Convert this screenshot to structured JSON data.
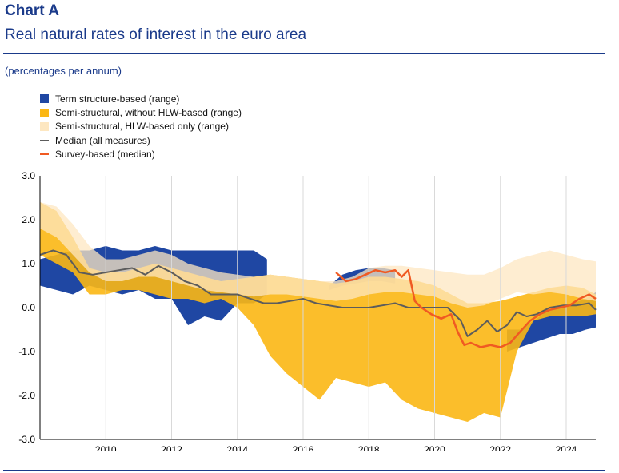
{
  "header": {
    "chart_label": "Chart A",
    "title": "Real natural rates of interest in the euro area",
    "units": "(percentages per annum)"
  },
  "legend": {
    "items": [
      {
        "label": "Term structure-based (range)",
        "kind": "box",
        "color": "#1f47a3"
      },
      {
        "label": "Semi-structural, without HLW-based (range)",
        "kind": "box",
        "color": "#fbb714"
      },
      {
        "label": "Semi-structural, HLW-based only (range)",
        "kind": "box",
        "color": "#fde7c1"
      },
      {
        "label": "Median (all measures)",
        "kind": "line",
        "color": "#5c5c5c"
      },
      {
        "label": "Survey-based (median)",
        "kind": "line",
        "color": "#f05a22"
      }
    ]
  },
  "chart_data": {
    "type": "area",
    "x_range": [
      2008.0,
      2024.9
    ],
    "ylim": [
      -3.0,
      3.0
    ],
    "y_ticks": [
      3.0,
      2.0,
      1.0,
      0.0,
      -1.0,
      -2.0,
      -3.0
    ],
    "y_tick_labels": [
      "3.0",
      "2.0",
      "1.0",
      "0.0",
      "-1.0",
      "-2.0",
      "-3.0"
    ],
    "x_ticks": [
      2010,
      2012,
      2014,
      2016,
      2018,
      2020,
      2022,
      2024
    ],
    "x_tick_labels": [
      "2010",
      "2012",
      "2014",
      "2016",
      "2018",
      "2020",
      "2022",
      "2024"
    ],
    "grid": "vertical",
    "series": [
      {
        "name": "Term structure-based (range)",
        "kind": "range",
        "color": "#1f47a3",
        "x": [
          2008.0,
          2008.5,
          2009.0,
          2009.5,
          2010.0,
          2010.5,
          2011.0,
          2011.5,
          2012.0,
          2012.5,
          2013.0,
          2013.5,
          2014.0,
          2014.5,
          2014.9
        ],
        "upper": [
          1.1,
          1.2,
          1.3,
          1.3,
          1.4,
          1.3,
          1.3,
          1.4,
          1.3,
          1.3,
          1.3,
          1.3,
          1.3,
          1.3,
          1.1
        ],
        "lower": [
          0.5,
          0.4,
          0.3,
          0.5,
          0.4,
          0.3,
          0.4,
          0.2,
          0.2,
          -0.4,
          -0.2,
          -0.3,
          0.1,
          0.1,
          0.3
        ]
      },
      {
        "name": "Term structure-based (range)",
        "kind": "range",
        "color": "#1f47a3",
        "x": [
          2016.8,
          2017.2,
          2017.6,
          2018.0,
          2018.4,
          2018.8
        ],
        "upper": [
          0.5,
          0.75,
          0.85,
          0.9,
          0.9,
          0.85
        ],
        "lower": [
          0.4,
          0.5,
          0.55,
          0.6,
          0.6,
          0.55
        ]
      },
      {
        "name": "Term structure-based (range)",
        "kind": "range",
        "color": "#1f47a3",
        "x": [
          2022.2,
          2022.6,
          2023.0,
          2023.4,
          2023.8,
          2024.2,
          2024.6,
          2024.9
        ],
        "upper": [
          -0.5,
          -0.5,
          -0.3,
          -0.1,
          0.0,
          0.1,
          0.2,
          0.35
        ],
        "lower": [
          -1.0,
          -0.9,
          -0.8,
          -0.7,
          -0.6,
          -0.6,
          -0.5,
          -0.45
        ]
      },
      {
        "name": "Semi-structural, without HLW-based (range)",
        "kind": "range",
        "color": "#fbb714",
        "x": [
          2008.0,
          2008.5,
          2009.0,
          2009.5,
          2010.0,
          2010.5,
          2011.0,
          2011.5,
          2012.0,
          2012.5,
          2013.0,
          2013.5,
          2014.0,
          2014.5,
          2015.0,
          2015.5,
          2016.0,
          2016.5,
          2017.0,
          2017.5,
          2018.0,
          2018.5,
          2019.0,
          2019.5,
          2020.0,
          2020.5,
          2021.0,
          2021.5,
          2022.0,
          2022.5,
          2023.0,
          2023.5,
          2024.0,
          2024.5,
          2024.9
        ],
        "upper": [
          2.4,
          2.2,
          1.6,
          0.9,
          0.8,
          0.8,
          0.9,
          1.0,
          0.9,
          0.8,
          0.7,
          0.6,
          0.65,
          0.7,
          0.75,
          0.7,
          0.65,
          0.6,
          0.55,
          0.6,
          0.7,
          0.7,
          0.65,
          0.6,
          0.5,
          0.3,
          0.1,
          0.1,
          0.15,
          0.25,
          0.35,
          0.45,
          0.5,
          0.45,
          0.3
        ],
        "lower": [
          1.2,
          1.0,
          0.8,
          0.3,
          0.3,
          0.4,
          0.4,
          0.3,
          0.2,
          0.2,
          0.1,
          0.2,
          0.0,
          -0.4,
          -1.1,
          -1.5,
          -1.8,
          -2.1,
          -1.6,
          -1.7,
          -1.8,
          -1.7,
          -2.1,
          -2.3,
          -2.4,
          -2.5,
          -2.6,
          -2.4,
          -2.5,
          -1.0,
          -0.3,
          -0.2,
          -0.2,
          -0.2,
          -0.15
        ]
      },
      {
        "name": "Semi-structural, HLW-based only (range)",
        "kind": "range",
        "color": "#fde7c1",
        "x": [
          2008.0,
          2008.5,
          2009.0,
          2009.5,
          2010.0,
          2010.5,
          2011.0,
          2011.5,
          2012.0,
          2012.5,
          2013.0,
          2013.5,
          2014.0,
          2014.5,
          2015.0,
          2015.5,
          2016.0,
          2016.5,
          2017.0,
          2017.5,
          2018.0,
          2018.5,
          2019.0,
          2019.5,
          2020.0,
          2020.5,
          2021.0,
          2021.5,
          2022.0,
          2022.5,
          2023.0,
          2023.5,
          2024.0,
          2024.5,
          2024.9
        ],
        "upper": [
          2.4,
          2.3,
          1.9,
          1.4,
          1.1,
          1.1,
          1.2,
          1.3,
          1.2,
          1.0,
          0.9,
          0.8,
          0.75,
          0.7,
          0.75,
          0.7,
          0.65,
          0.6,
          0.6,
          0.7,
          0.9,
          0.95,
          0.95,
          0.9,
          0.85,
          0.8,
          0.75,
          0.75,
          0.9,
          1.1,
          1.2,
          1.3,
          1.2,
          1.1,
          1.05
        ],
        "lower": [
          1.8,
          1.6,
          1.2,
          0.8,
          0.6,
          0.6,
          0.7,
          0.7,
          0.6,
          0.5,
          0.4,
          0.35,
          0.3,
          0.25,
          0.3,
          0.3,
          0.25,
          0.2,
          0.15,
          0.2,
          0.3,
          0.35,
          0.35,
          0.3,
          0.25,
          0.1,
          0.0,
          0.05,
          0.2,
          0.35,
          0.3,
          0.35,
          0.3,
          0.2,
          0.15
        ]
      },
      {
        "name": "Median (all measures)",
        "kind": "line",
        "color": "#5c5c5c",
        "x": [
          2008.0,
          2008.4,
          2008.8,
          2009.2,
          2009.6,
          2010.0,
          2010.4,
          2010.8,
          2011.2,
          2011.6,
          2012.0,
          2012.4,
          2012.8,
          2013.2,
          2013.6,
          2014.0,
          2014.4,
          2014.8,
          2015.2,
          2015.6,
          2016.0,
          2016.4,
          2016.8,
          2017.2,
          2017.6,
          2018.0,
          2018.4,
          2018.8,
          2019.2,
          2019.6,
          2020.0,
          2020.4,
          2020.8,
          2021.0,
          2021.3,
          2021.6,
          2021.9,
          2022.2,
          2022.5,
          2022.8,
          2023.1,
          2023.5,
          2023.9,
          2024.3,
          2024.7,
          2024.9
        ],
        "y": [
          1.2,
          1.3,
          1.2,
          0.8,
          0.75,
          0.8,
          0.85,
          0.9,
          0.75,
          0.95,
          0.8,
          0.6,
          0.5,
          0.3,
          0.3,
          0.3,
          0.2,
          0.1,
          0.1,
          0.15,
          0.2,
          0.1,
          0.05,
          0.0,
          0.0,
          0.0,
          0.05,
          0.1,
          0.0,
          0.0,
          0.0,
          0.0,
          -0.3,
          -0.65,
          -0.5,
          -0.3,
          -0.55,
          -0.4,
          -0.1,
          -0.2,
          -0.15,
          0.0,
          0.05,
          0.05,
          0.1,
          -0.05
        ]
      },
      {
        "name": "Survey-based (median)",
        "kind": "line",
        "color": "#f05a22",
        "x": [
          2017.0,
          2017.3,
          2017.6,
          2017.9,
          2018.2,
          2018.5,
          2018.8,
          2019.0,
          2019.2,
          2019.4,
          2019.6,
          2019.9,
          2020.2,
          2020.5,
          2020.7,
          2020.9,
          2021.1,
          2021.4,
          2021.7,
          2022.0,
          2022.3,
          2022.6,
          2022.9,
          2023.2,
          2023.5,
          2023.8,
          2024.1,
          2024.4,
          2024.7,
          2024.9
        ],
        "y": [
          0.8,
          0.6,
          0.65,
          0.75,
          0.85,
          0.8,
          0.85,
          0.7,
          0.85,
          0.15,
          0.0,
          -0.15,
          -0.25,
          -0.15,
          -0.55,
          -0.85,
          -0.8,
          -0.9,
          -0.85,
          -0.9,
          -0.8,
          -0.55,
          -0.3,
          -0.15,
          -0.05,
          0.0,
          0.05,
          0.2,
          0.3,
          0.2
        ]
      }
    ]
  }
}
